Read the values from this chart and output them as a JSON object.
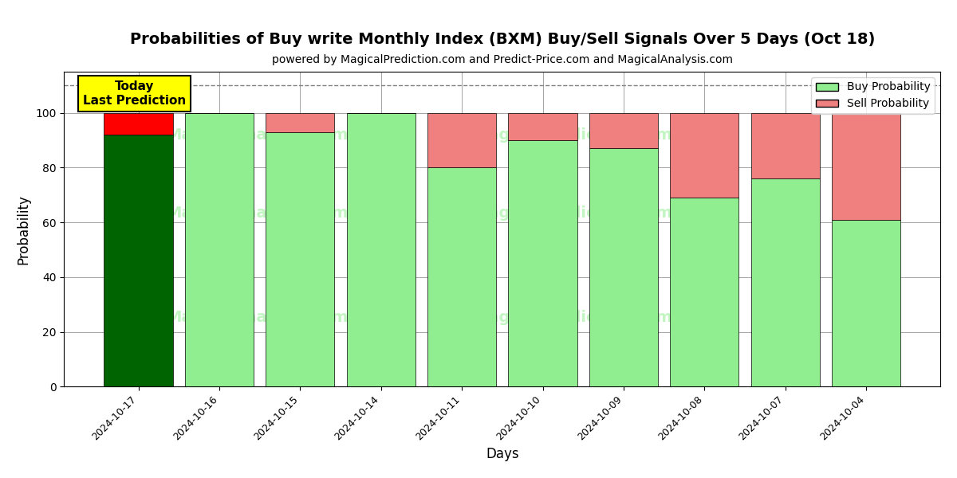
{
  "title": "Probabilities of Buy write Monthly Index (BXM) Buy/Sell Signals Over 5 Days (Oct 18)",
  "subtitle": "powered by MagicalPrediction.com and Predict-Price.com and MagicalAnalysis.com",
  "xlabel": "Days",
  "ylabel": "Probability",
  "dates": [
    "2024-10-17",
    "2024-10-16",
    "2024-10-15",
    "2024-10-14",
    "2024-10-11",
    "2024-10-10",
    "2024-10-09",
    "2024-10-08",
    "2024-10-07",
    "2024-10-04"
  ],
  "buy_prob": [
    92,
    100,
    93,
    100,
    80,
    90,
    87,
    69,
    76,
    61
  ],
  "sell_prob": [
    8,
    0,
    7,
    0,
    20,
    10,
    13,
    31,
    24,
    39
  ],
  "buy_color_today": "#006400",
  "sell_color_today": "#FF0000",
  "buy_color_normal": "#90EE90",
  "sell_color_normal": "#F08080",
  "today_box_color": "#FFFF00",
  "dashed_line_y": 110,
  "ylim": [
    0,
    115
  ],
  "yticks": [
    0,
    20,
    40,
    60,
    80,
    100
  ],
  "legend_buy_label": "Buy Probability",
  "legend_sell_label": "Sell Probability",
  "today_label_line1": "Today",
  "today_label_line2": "Last Prediction",
  "bar_width": 0.85
}
